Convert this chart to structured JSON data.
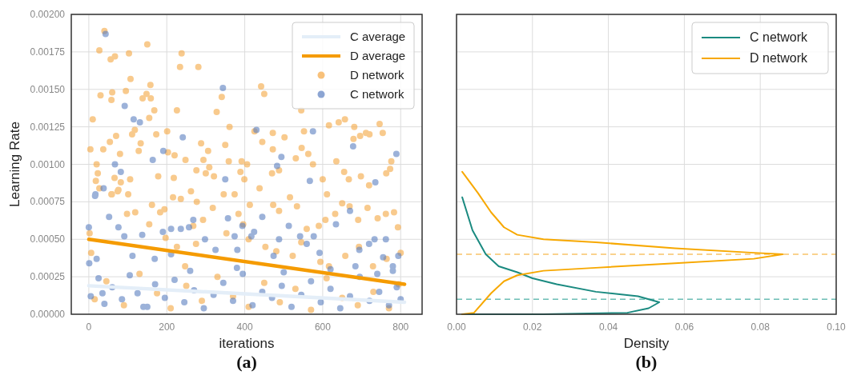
{
  "chart_data": [
    {
      "type": "scatter",
      "xlabel": "iterations",
      "ylabel": "Learning Rate",
      "annotations": [
        "(a)"
      ],
      "xlim": [
        -45,
        855
      ],
      "xticks": [
        0,
        200,
        400,
        600,
        800
      ],
      "ylim": [
        0,
        0.002
      ],
      "yticks": [
        {
          "value": 0,
          "label": "0.00000"
        },
        {
          "value": 0.00025,
          "label": "0.00025"
        },
        {
          "value": 0.0005,
          "label": "0.00050"
        },
        {
          "value": 0.00075,
          "label": "0.00075"
        },
        {
          "value": 0.001,
          "label": "0.00100"
        },
        {
          "value": 0.00125,
          "label": "0.00125"
        },
        {
          "value": 0.0015,
          "label": "0.00150"
        },
        {
          "value": 0.00175,
          "label": "0.00175"
        },
        {
          "value": 0.002,
          "label": "0.00200"
        }
      ],
      "grid": true,
      "legend": "top right",
      "series": [
        {
          "name": "C average",
          "type": "line",
          "color": "#e4eef8",
          "x": [
            0,
            810
          ],
          "values": [
            0.00019,
            8e-05
          ]
        },
        {
          "name": "D average",
          "type": "line",
          "color": "#f59b00",
          "x": [
            0,
            810
          ],
          "values": [
            0.0005,
            0.0002
          ]
        },
        {
          "name": "D network",
          "type": "scatter",
          "marker": "circle",
          "color": "#f5a742",
          "x": [
            40,
            27,
            56,
            67,
            103,
            150,
            238,
            234,
            281,
            107,
            158,
            30,
            60,
            58,
            95,
            148,
            159,
            138,
            341,
            442,
            450,
            10,
            155,
            168,
            226,
            328,
            361,
            545,
            616,
            641,
            657,
            681,
            746,
            754,
            425,
            472,
            552,
            4,
            37,
            54,
            70,
            111,
            118,
            133,
            173,
            201,
            288,
            350,
            445,
            502,
            679,
            696,
            711,
            720,
            20,
            80,
            128,
            203,
            220,
            248,
            294,
            306,
            359,
            392,
            406,
            472,
            531,
            546,
            563,
            575,
            635,
            776,
            23,
            66,
            82,
            106,
            178,
            218,
            276,
            309,
            300,
            321,
            389,
            399,
            470,
            488,
            600,
            655,
            667,
            698,
            719,
            763,
            773,
            18,
            58,
            74,
            101,
            27,
            59,
            76,
            162,
            183,
            194,
            216,
            236,
            262,
            277,
            318,
            346,
            374,
            384,
            413,
            438,
            473,
            488,
            516,
            534,
            559,
            590,
            607,
            611,
            632,
            650,
            669,
            691,
            715,
            741,
            762,
            783,
            793,
            2,
            98,
            119,
            155,
            197,
            226,
            247,
            268,
            275,
            293,
            353,
            396,
            410,
            453,
            481,
            523,
            545,
            594,
            616,
            658,
            693,
            729,
            764,
            800,
            6,
            15,
            45,
            90,
            130,
            175,
            210,
            250,
            290,
            330,
            370,
            410,
            450,
            490,
            530,
            570,
            610,
            650,
            690,
            730,
            770,
            795
          ],
          "values": [
            0.00189,
            0.00176,
            0.0017,
            0.00172,
            0.00174,
            0.0018,
            0.00174,
            0.00165,
            0.00165,
            0.00157,
            0.00153,
            0.00146,
            0.00148,
            0.00143,
            0.00149,
            0.00147,
            0.00144,
            0.00144,
            0.00145,
            0.00152,
            0.00147,
            0.0013,
            0.00131,
            0.00136,
            0.00136,
            0.00135,
            0.00125,
            0.00136,
            0.00126,
            0.00128,
            0.0013,
            0.00125,
            0.00127,
            0.00121,
            0.00122,
            0.00121,
            0.00122,
            0.0011,
            0.0011,
            0.00115,
            0.00119,
            0.0012,
            0.00123,
            0.00114,
            0.0012,
            0.00122,
            0.00114,
            0.00113,
            0.00115,
            0.00118,
            0.00117,
            0.00119,
            0.00121,
            0.0012,
            0.001,
            0.00107,
            0.00109,
            0.00108,
            0.00106,
            0.00103,
            0.00103,
            0.00109,
            0.00102,
            0.00102,
            0.001,
            0.0011,
            0.00104,
            0.00111,
            0.00107,
            0.001,
            0.00102,
            0.00102,
            0.00094,
            0.00091,
            0.00088,
            0.0009,
            0.00092,
            0.00091,
            0.00096,
            0.00098,
            0.00094,
            0.00092,
            0.00095,
            0.0009,
            0.00094,
            0.00096,
            0.0009,
            0.00095,
            0.0009,
            0.00092,
            0.00086,
            0.00094,
            0.00097,
            0.00089,
            0.0008,
            0.00082,
            0.0008,
            0.00084,
            0.0008,
            0.00083,
            0.00073,
            0.00068,
            0.0007,
            0.00078,
            0.00077,
            0.00082,
            0.00075,
            0.00071,
            0.0008,
            0.0008,
            0.00067,
            0.00073,
            0.00084,
            0.00073,
            0.00069,
            0.00078,
            0.00072,
            0.00057,
            0.00059,
            0.00063,
            0.0008,
            0.00067,
            0.00074,
            0.00072,
            0.00063,
            0.00071,
            0.00064,
            0.00067,
            0.00068,
            0.00058,
            0.00054,
            0.00067,
            0.00068,
            0.0006,
            0.00051,
            0.00045,
            0.00032,
            0.00059,
            0.00047,
            0.00063,
            0.00054,
            0.0006,
            0.0005,
            0.00045,
            0.00042,
            0.00039,
            0.00048,
            0.00035,
            0.00032,
            0.00039,
            0.00045,
            0.00032,
            0.00037,
            0.00041,
            0.00041,
            0.0001,
            0.00022,
            6e-05,
            0.00027,
            0.00014,
            4e-05,
            0.00019,
            9e-05,
            0.00025,
            0.00012,
            5e-05,
            0.00021,
            8e-05,
            0.00017,
            3e-05,
            0.00024,
            0.00011,
            6e-05,
            0.00015,
            4e-05,
            0.0002
          ]
        },
        {
          "name": "C network",
          "type": "scatter",
          "marker": "circle",
          "color": "#5b7fc0",
          "x": [
            43,
            92,
            344,
            115,
            131,
            241,
            430,
            575,
            678,
            191,
            164,
            67,
            494,
            483,
            789,
            82,
            350,
            567,
            735,
            38,
            17,
            0,
            16,
            52,
            76,
            91,
            137,
            190,
            211,
            236,
            257,
            268,
            298,
            357,
            374,
            394,
            417,
            424,
            445,
            488,
            513,
            542,
            559,
            577,
            592,
            634,
            670,
            684,
            694,
            719,
            733,
            755,
            762,
            780,
            794,
            1,
            20,
            112,
            169,
            211,
            325,
            381,
            474,
            5,
            25,
            40,
            60,
            85,
            105,
            125,
            150,
            170,
            195,
            220,
            245,
            270,
            295,
            320,
            345,
            370,
            395,
            420,
            445,
            470,
            495,
            520,
            545,
            570,
            595,
            620,
            645,
            670,
            695,
            720,
            745,
            770,
            790,
            800,
            35,
            140,
            260,
            380,
            500,
            620,
            740,
            780
          ],
          "values": [
            0.00187,
            0.00139,
            0.00151,
            0.0013,
            0.00128,
            0.00118,
            0.00123,
            0.00122,
            0.00112,
            0.00109,
            0.00103,
            0.001,
            0.00105,
            0.00099,
            0.00107,
            0.00095,
            0.0009,
            0.00089,
            0.00088,
            0.00084,
            0.0008,
            0.00058,
            0.00079,
            0.00065,
            0.00058,
            0.00052,
            0.00053,
            0.00055,
            0.00057,
            0.00057,
            0.00058,
            0.00063,
            0.0005,
            0.00064,
            0.00052,
            0.00059,
            0.00052,
            0.00055,
            0.00065,
            0.0005,
            0.00059,
            0.00052,
            0.00047,
            0.00052,
            0.00041,
            0.0006,
            0.00069,
            0.00032,
            0.00043,
            0.00047,
            0.0005,
            0.00038,
            0.0005,
            0.00032,
            0.00039,
            0.00034,
            0.00037,
            0.00039,
            0.00037,
            0.0004,
            0.00043,
            0.00043,
            0.00039,
            0.00012,
            0.00024,
            7e-05,
            0.00018,
            0.0001,
            0.00026,
            0.00014,
            5e-05,
            0.0002,
            0.00011,
            0.00023,
            8e-05,
            0.00016,
            4e-05,
            0.00013,
            0.00021,
            9e-05,
            0.00027,
            6e-05,
            0.00015,
            0.00011,
            0.00019,
            5e-05,
            0.00013,
            0.00022,
            8e-05,
            0.00017,
            4e-05,
            0.00012,
            0.00025,
            9e-05,
            0.00015,
            6e-05,
            0.00018,
            0.0001,
            0.00014,
            5e-05,
            0.00029,
            0.00031,
            0.00028,
            0.0003,
            0.00027,
            0.00029
          ]
        }
      ]
    },
    {
      "type": "line",
      "xlabel": "Density",
      "annotations": [
        "(b)"
      ],
      "xlim": [
        0,
        0.1
      ],
      "xticks": [
        {
          "value": 0,
          "label": "0.00"
        },
        {
          "value": 0.02,
          "label": "0.02"
        },
        {
          "value": 0.04,
          "label": "0.04"
        },
        {
          "value": 0.06,
          "label": "0.06"
        },
        {
          "value": 0.08,
          "label": "0.08"
        },
        {
          "value": 0.1,
          "label": "0.10"
        }
      ],
      "ylim": [
        0,
        0.002
      ],
      "yticks": [
        {
          "value": 0,
          "label": null
        },
        {
          "value": 0.00025,
          "label": null
        },
        {
          "value": 0.0005,
          "label": null
        },
        {
          "value": 0.00075,
          "label": null
        },
        {
          "value": 0.001,
          "label": null
        },
        {
          "value": 0.00125,
          "label": null
        },
        {
          "value": 0.0015,
          "label": null
        },
        {
          "value": 0.00175,
          "label": null
        },
        {
          "value": 0.002,
          "label": null
        }
      ],
      "tick_labels": "x",
      "grid": true,
      "legend": "top right",
      "ref_lines": [
        {
          "axis": "y",
          "value": 0.0004,
          "color": "#f8c46a",
          "line_style": "dashed"
        },
        {
          "axis": "y",
          "value": 0.0001,
          "color": "#6bbdb4",
          "line_style": "dashed"
        }
      ],
      "series": [
        {
          "name": "C network",
          "color": "#1a8a80",
          "x": [
            0.0015,
            0.0042,
            0.0077,
            0.0111,
            0.016,
            0.02,
            0.0264,
            0.0367,
            0.0478,
            0.0534,
            0.0506,
            0.045,
            0.0229,
            0.0015
          ],
          "values": [
            0.00078,
            0.00056,
            0.0004,
            0.00032,
            0.00028,
            0.00024,
            0.0002,
            0.00015,
            0.00012,
            8e-05,
            4e-05,
            1e-05,
            0,
            0
          ]
        },
        {
          "name": "D network",
          "color": "#f7a800",
          "x": [
            0.0015,
            0.0056,
            0.0091,
            0.0125,
            0.016,
            0.0229,
            0.0367,
            0.0575,
            0.0783,
            0.0859,
            0.0783,
            0.0575,
            0.0367,
            0.0229,
            0.016,
            0.0125,
            0.0091,
            0.0046,
            0.0015
          ],
          "values": [
            0.00095,
            0.00081,
            0.00068,
            0.00058,
            0.00053,
            0.0005,
            0.00048,
            0.00044,
            0.00041,
            0.0004,
            0.00037,
            0.00034,
            0.00031,
            0.00029,
            0.00026,
            0.00022,
            0.00014,
            1e-05,
            0
          ]
        }
      ]
    }
  ]
}
